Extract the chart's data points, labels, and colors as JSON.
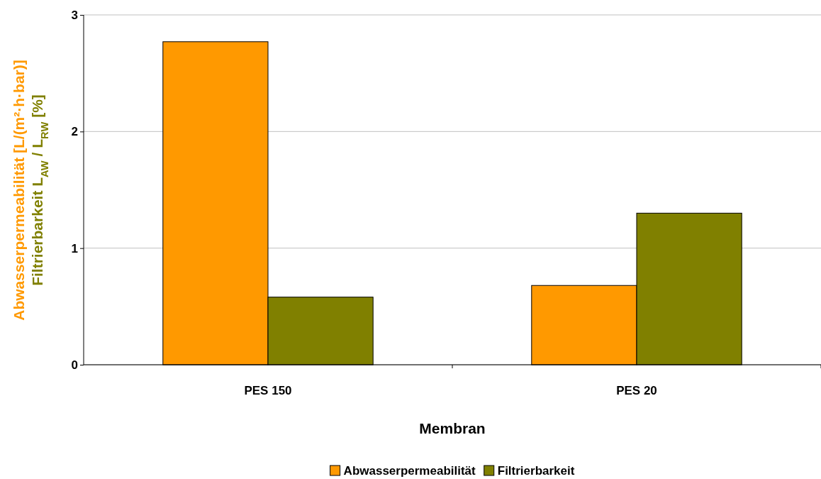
{
  "chart_data": {
    "type": "bar",
    "xlabel": "Membran",
    "ylabel": "Abwasserpermeabilität [L/(m²·h·bar)]",
    "y2label": "Filtrierbarkeit L$_{AW}$ / L$_{RW}$ [%]",
    "categories": [
      "PES 150",
      "PES 20"
    ],
    "series": [
      {
        "name": "Abwasserpermeabilität",
        "color": "#ff9900",
        "values": [
          2.77,
          0.68
        ]
      },
      {
        "name": "Filtrierbarkeit",
        "color": "#808000",
        "values": [
          0.58,
          1.3
        ]
      }
    ],
    "ylim": [
      0,
      3
    ],
    "yticks": [
      0,
      1,
      2,
      3
    ],
    "grid": "y",
    "legend": "bottom"
  }
}
